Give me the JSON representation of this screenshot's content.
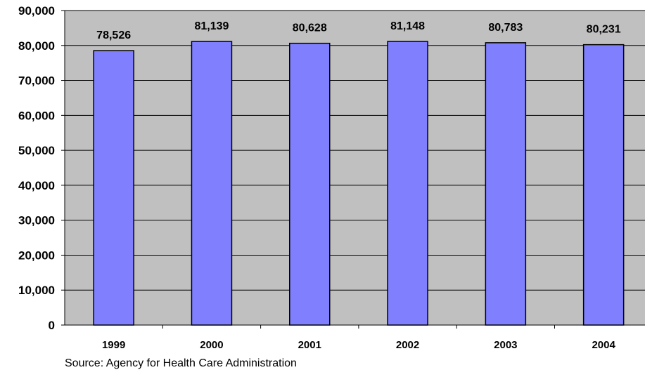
{
  "chart_data": {
    "type": "bar",
    "title": "",
    "xlabel": "",
    "ylabel": "",
    "categories": [
      "1999",
      "2000",
      "2001",
      "2002",
      "2003",
      "2004"
    ],
    "values": [
      78526,
      81139,
      80628,
      81148,
      80783,
      80231
    ],
    "value_labels": [
      "78,526",
      "81,139",
      "80,628",
      "81,148",
      "80,783",
      "80,231"
    ],
    "ylim": [
      0,
      90000
    ],
    "yticks": [
      0,
      10000,
      20000,
      30000,
      40000,
      50000,
      60000,
      70000,
      80000,
      90000
    ],
    "ytick_labels": [
      "0",
      "10,000",
      "20,000",
      "30,000",
      "40,000",
      "50,000",
      "60,000",
      "70,000",
      "80,000",
      "90,000"
    ],
    "grid": true,
    "legend": "none",
    "colors": {
      "bar_fill": "#8080ff",
      "bar_stroke": "#000000",
      "plot_background": "#c0c0c0",
      "gridline": "#000000"
    }
  },
  "source_note": "Source: Agency for Health Care Administration"
}
